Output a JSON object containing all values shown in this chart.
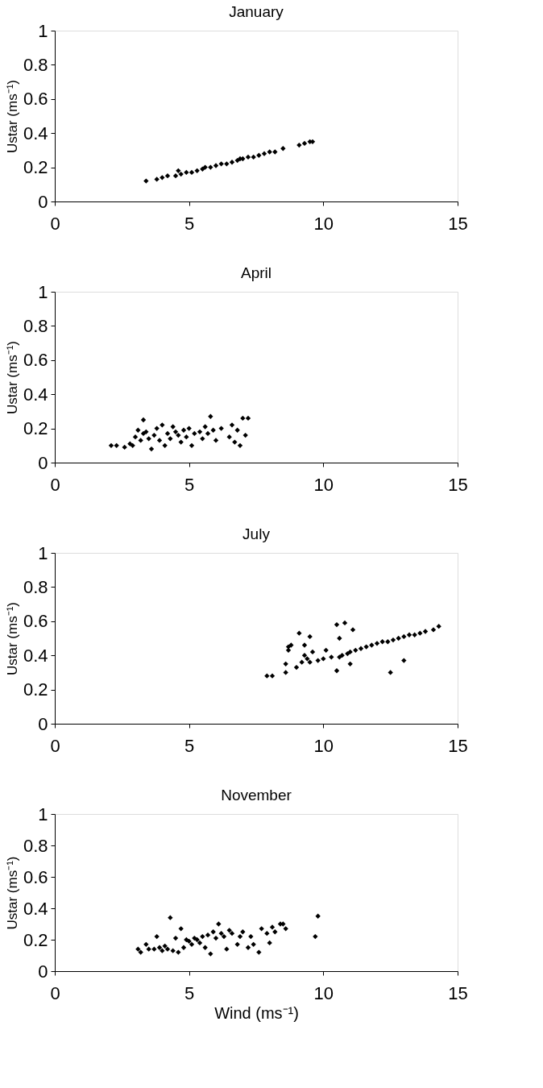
{
  "chart_data": [
    {
      "type": "scatter",
      "title": "January",
      "ylabel": "Ustar (ms⁻¹)",
      "xlim": [
        0,
        15
      ],
      "ylim": [
        0,
        1
      ],
      "xticks": [
        0,
        5,
        10,
        15
      ],
      "yticks": [
        0,
        0.2,
        0.4,
        0.6,
        0.8,
        1
      ],
      "grid": false,
      "marker": "diamond",
      "color": "#000000",
      "x": [
        3.4,
        3.8,
        4.0,
        4.2,
        4.5,
        4.6,
        4.7,
        4.9,
        5.1,
        5.3,
        5.5,
        5.6,
        5.8,
        6.0,
        6.2,
        6.4,
        6.6,
        6.8,
        6.9,
        7.0,
        7.2,
        7.4,
        7.6,
        7.8,
        8.0,
        8.2,
        8.5,
        9.1,
        9.3,
        9.5,
        9.6
      ],
      "values": [
        0.12,
        0.13,
        0.14,
        0.15,
        0.15,
        0.18,
        0.16,
        0.17,
        0.17,
        0.18,
        0.19,
        0.2,
        0.2,
        0.21,
        0.22,
        0.22,
        0.23,
        0.24,
        0.25,
        0.25,
        0.26,
        0.26,
        0.27,
        0.28,
        0.29,
        0.29,
        0.31,
        0.33,
        0.34,
        0.35,
        0.35
      ]
    },
    {
      "type": "scatter",
      "title": "April",
      "ylabel": "Ustar (ms⁻¹)",
      "xlim": [
        0,
        15
      ],
      "ylim": [
        0,
        1
      ],
      "xticks": [
        0,
        5,
        10,
        15
      ],
      "yticks": [
        0,
        0.2,
        0.4,
        0.6,
        0.8,
        1
      ],
      "grid": false,
      "marker": "diamond",
      "color": "#000000",
      "x": [
        2.1,
        2.3,
        2.6,
        2.8,
        2.9,
        3.0,
        3.1,
        3.2,
        3.3,
        3.3,
        3.4,
        3.5,
        3.6,
        3.7,
        3.8,
        3.9,
        4.0,
        4.1,
        4.2,
        4.3,
        4.4,
        4.5,
        4.6,
        4.7,
        4.8,
        4.9,
        5.0,
        5.1,
        5.2,
        5.4,
        5.5,
        5.6,
        5.7,
        5.8,
        5.9,
        6.0,
        6.2,
        6.5,
        6.6,
        6.7,
        6.8,
        6.9,
        7.0,
        7.1,
        7.2
      ],
      "values": [
        0.1,
        0.1,
        0.09,
        0.11,
        0.1,
        0.15,
        0.19,
        0.13,
        0.17,
        0.25,
        0.18,
        0.14,
        0.08,
        0.16,
        0.2,
        0.13,
        0.22,
        0.1,
        0.17,
        0.14,
        0.21,
        0.18,
        0.16,
        0.12,
        0.19,
        0.15,
        0.2,
        0.1,
        0.17,
        0.18,
        0.14,
        0.21,
        0.17,
        0.27,
        0.19,
        0.13,
        0.2,
        0.15,
        0.22,
        0.12,
        0.19,
        0.1,
        0.26,
        0.16,
        0.26
      ]
    },
    {
      "type": "scatter",
      "title": "July",
      "ylabel": "Ustar (ms⁻¹)",
      "xlim": [
        0,
        15
      ],
      "ylim": [
        0,
        1
      ],
      "xticks": [
        0,
        5,
        10,
        15
      ],
      "yticks": [
        0,
        0.2,
        0.4,
        0.6,
        0.8,
        1
      ],
      "grid": false,
      "marker": "diamond",
      "color": "#000000",
      "x": [
        7.9,
        8.1,
        8.6,
        8.6,
        8.7,
        8.7,
        8.8,
        9.0,
        9.1,
        9.2,
        9.3,
        9.3,
        9.4,
        9.5,
        9.5,
        9.6,
        9.8,
        10.0,
        10.1,
        10.3,
        10.5,
        10.5,
        10.6,
        10.6,
        10.7,
        10.8,
        10.9,
        11.0,
        11.0,
        11.1,
        11.2,
        11.4,
        11.6,
        11.8,
        12.0,
        12.2,
        12.4,
        12.5,
        12.6,
        12.8,
        13.0,
        13.0,
        13.2,
        13.4,
        13.6,
        13.8,
        14.1,
        14.3
      ],
      "values": [
        0.28,
        0.28,
        0.3,
        0.35,
        0.43,
        0.45,
        0.46,
        0.33,
        0.53,
        0.36,
        0.46,
        0.4,
        0.38,
        0.51,
        0.36,
        0.42,
        0.37,
        0.38,
        0.43,
        0.39,
        0.31,
        0.58,
        0.5,
        0.39,
        0.4,
        0.59,
        0.41,
        0.35,
        0.42,
        0.55,
        0.43,
        0.44,
        0.45,
        0.46,
        0.47,
        0.48,
        0.48,
        0.3,
        0.49,
        0.5,
        0.37,
        0.51,
        0.52,
        0.52,
        0.53,
        0.54,
        0.55,
        0.57
      ]
    },
    {
      "type": "scatter",
      "title": "November",
      "ylabel": "Ustar (ms⁻¹)",
      "xlabel": "Wind (ms⁻¹)",
      "xlim": [
        0,
        15
      ],
      "ylim": [
        0,
        1
      ],
      "xticks": [
        0,
        5,
        10,
        15
      ],
      "yticks": [
        0,
        0.2,
        0.4,
        0.6,
        0.8,
        1
      ],
      "grid": false,
      "marker": "diamond",
      "color": "#000000",
      "x": [
        3.1,
        3.2,
        3.4,
        3.5,
        3.7,
        3.8,
        3.9,
        4.0,
        4.1,
        4.2,
        4.3,
        4.4,
        4.5,
        4.6,
        4.7,
        4.8,
        4.9,
        5.0,
        5.1,
        5.2,
        5.3,
        5.4,
        5.5,
        5.6,
        5.7,
        5.8,
        5.9,
        6.0,
        6.1,
        6.2,
        6.3,
        6.4,
        6.5,
        6.6,
        6.8,
        6.9,
        7.0,
        7.2,
        7.3,
        7.4,
        7.6,
        7.7,
        7.9,
        8.0,
        8.1,
        8.2,
        8.4,
        8.5,
        8.6,
        9.7,
        9.8
      ],
      "values": [
        0.14,
        0.12,
        0.17,
        0.14,
        0.14,
        0.22,
        0.15,
        0.13,
        0.16,
        0.14,
        0.34,
        0.13,
        0.21,
        0.12,
        0.27,
        0.15,
        0.2,
        0.19,
        0.17,
        0.21,
        0.2,
        0.18,
        0.22,
        0.15,
        0.23,
        0.11,
        0.25,
        0.21,
        0.3,
        0.24,
        0.22,
        0.14,
        0.26,
        0.24,
        0.17,
        0.22,
        0.25,
        0.15,
        0.22,
        0.17,
        0.12,
        0.27,
        0.24,
        0.18,
        0.28,
        0.25,
        0.3,
        0.3,
        0.27,
        0.22,
        0.35
      ]
    }
  ]
}
